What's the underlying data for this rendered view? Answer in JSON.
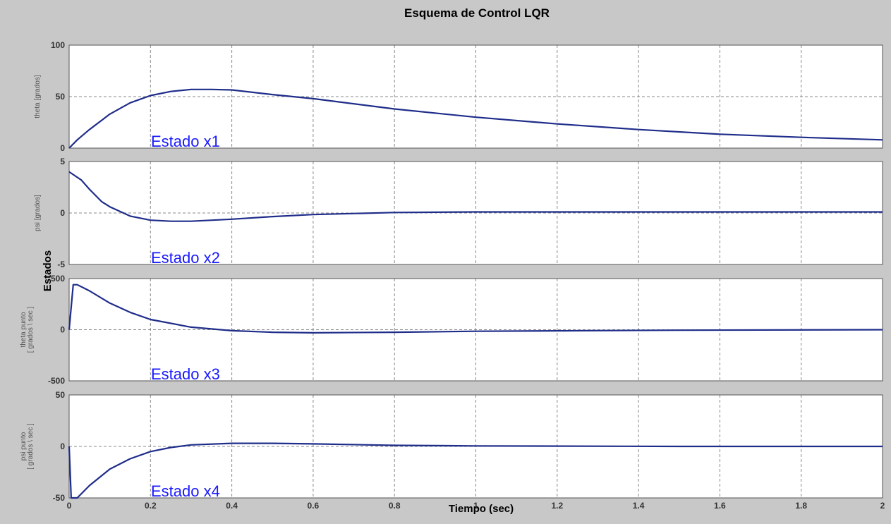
{
  "title": "Esquema de Control LQR",
  "xlabel": "Tiempo (sec)",
  "ylabel": "Estados",
  "colors": {
    "background": "#c8c8c8",
    "axes": "#ffffff",
    "line": "#1f2d8a",
    "annotation": "#1a1aff",
    "grid": "#888888"
  },
  "chart_data": [
    {
      "type": "line",
      "ylabel": "theta  [grados]",
      "annotation": "Estado x1",
      "xlim": [
        0,
        2
      ],
      "ylim": [
        0,
        100
      ],
      "xticks": [
        0,
        0.2,
        0.4,
        0.6,
        0.8,
        1,
        1.2,
        1.4,
        1.6,
        1.8,
        2
      ],
      "yticks": [
        0,
        50,
        100
      ],
      "grid": true,
      "series": [
        {
          "x": [
            0,
            0.02,
            0.05,
            0.08,
            0.1,
            0.15,
            0.2,
            0.25,
            0.3,
            0.35,
            0.4,
            0.5,
            0.6,
            0.8,
            1.0,
            1.2,
            1.4,
            1.6,
            1.8,
            2.0
          ],
          "values": [
            0,
            8,
            18,
            27,
            33,
            44,
            51,
            55,
            57,
            57,
            56.5,
            52,
            48,
            38,
            30,
            23.5,
            18,
            13.5,
            10.5,
            8
          ]
        }
      ]
    },
    {
      "type": "line",
      "ylabel": "psi  [grados]",
      "annotation": "Estado x2",
      "xlim": [
        0,
        2
      ],
      "ylim": [
        -5,
        5
      ],
      "xticks": [
        0,
        0.2,
        0.4,
        0.6,
        0.8,
        1,
        1.2,
        1.4,
        1.6,
        1.8,
        2
      ],
      "yticks": [
        -5,
        0,
        5
      ],
      "grid": true,
      "series": [
        {
          "x": [
            0,
            0.03,
            0.05,
            0.08,
            0.1,
            0.15,
            0.2,
            0.25,
            0.3,
            0.4,
            0.5,
            0.6,
            0.8,
            1.0,
            1.5,
            2.0
          ],
          "values": [
            4,
            3.2,
            2.3,
            1.1,
            0.6,
            -0.3,
            -0.7,
            -0.8,
            -0.8,
            -0.6,
            -0.35,
            -0.15,
            0.05,
            0.1,
            0.1,
            0.1
          ]
        }
      ]
    },
    {
      "type": "line",
      "ylabel": [
        "theta punto",
        "[ grados \\ sec ]"
      ],
      "annotation": "Estado x3",
      "xlim": [
        0,
        2
      ],
      "ylim": [
        -500,
        500
      ],
      "xticks": [
        0,
        0.2,
        0.4,
        0.6,
        0.8,
        1,
        1.2,
        1.4,
        1.6,
        1.8,
        2
      ],
      "yticks": [
        -500,
        0,
        500
      ],
      "grid": true,
      "series": [
        {
          "x": [
            0,
            0.01,
            0.02,
            0.05,
            0.1,
            0.15,
            0.2,
            0.3,
            0.4,
            0.5,
            0.6,
            0.8,
            1.0,
            1.5,
            2.0
          ],
          "values": [
            0,
            440,
            440,
            380,
            260,
            170,
            100,
            25,
            -10,
            -25,
            -30,
            -25,
            -15,
            -5,
            0
          ]
        }
      ]
    },
    {
      "type": "line",
      "ylabel": [
        "psi punto",
        "[ grados \\ sec ]"
      ],
      "annotation": "Estado x4",
      "xlim": [
        0,
        2
      ],
      "ylim": [
        -50,
        50
      ],
      "xticks": [
        0,
        0.2,
        0.4,
        0.6,
        0.8,
        1,
        1.2,
        1.4,
        1.6,
        1.8,
        2
      ],
      "yticks": [
        -50,
        0,
        50
      ],
      "grid": true,
      "series": [
        {
          "x": [
            0,
            0.005,
            0.02,
            0.05,
            0.1,
            0.15,
            0.2,
            0.25,
            0.3,
            0.4,
            0.5,
            0.6,
            0.8,
            1.0,
            1.5,
            2.0
          ],
          "values": [
            0,
            -50,
            -50,
            -38,
            -22,
            -12,
            -5,
            -1,
            1.5,
            3,
            3,
            2.5,
            1,
            0.5,
            0,
            0
          ]
        }
      ]
    }
  ]
}
